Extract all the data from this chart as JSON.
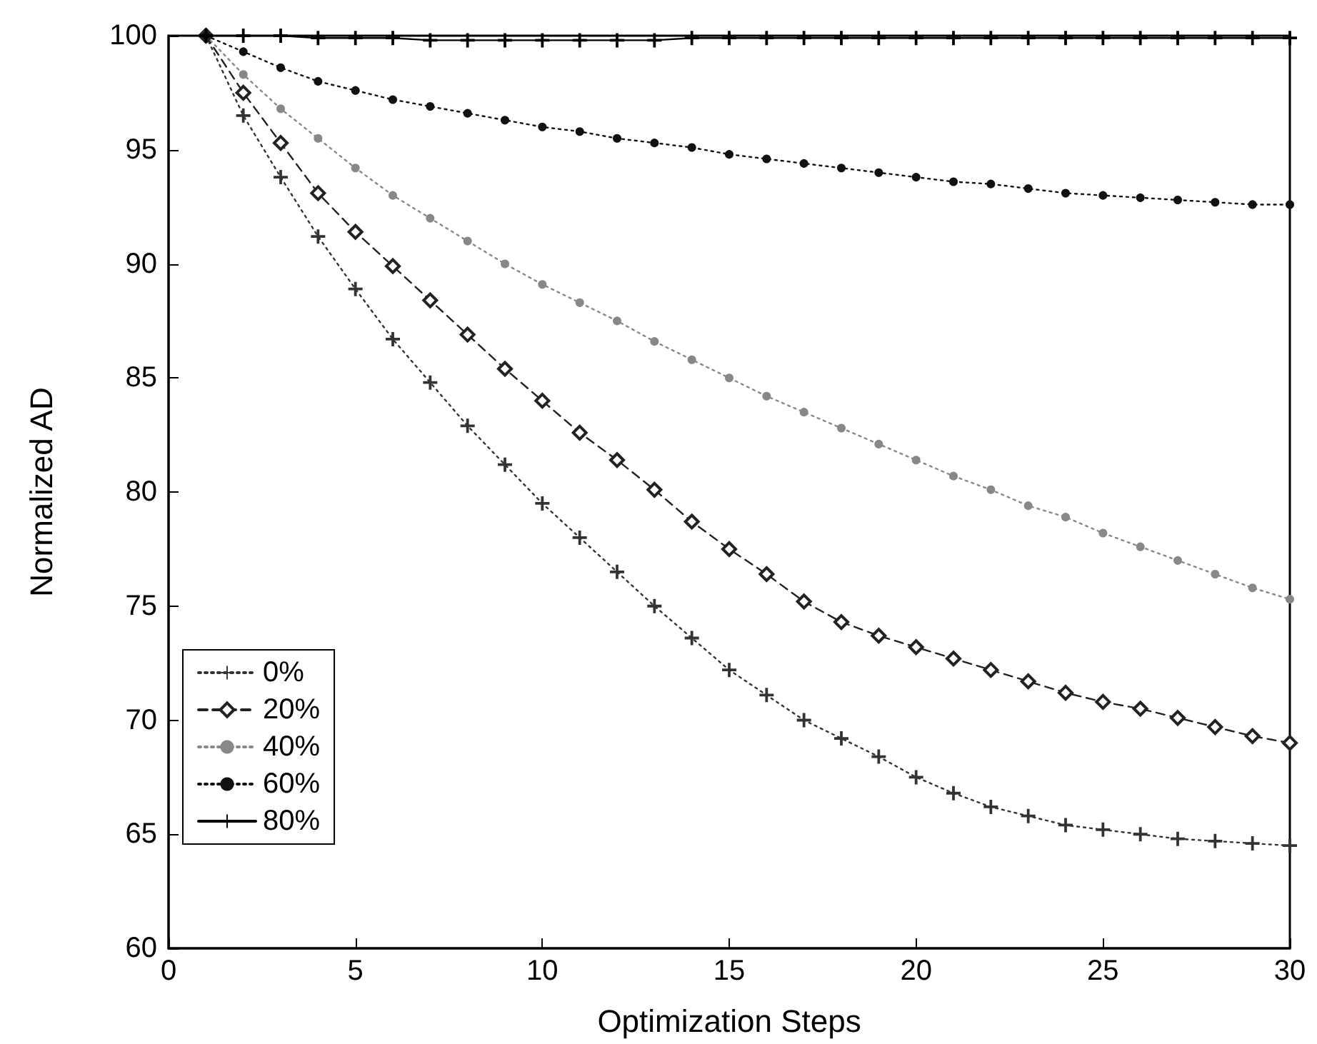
{
  "chart_data": {
    "type": "line",
    "xlabel": "Optimization Steps",
    "ylabel": "Normalized AD",
    "x": [
      1,
      2,
      3,
      4,
      5,
      6,
      7,
      8,
      9,
      10,
      11,
      12,
      13,
      14,
      15,
      16,
      17,
      18,
      19,
      20,
      21,
      22,
      23,
      24,
      25,
      26,
      27,
      28,
      29,
      30
    ],
    "xlim": [
      0,
      30
    ],
    "xticks": [
      0,
      5,
      10,
      15,
      20,
      25,
      30
    ],
    "ylim": [
      60,
      100
    ],
    "yticks": [
      60,
      65,
      70,
      75,
      80,
      85,
      90,
      95,
      100
    ],
    "grid": false,
    "legend": "bottom left",
    "series": [
      {
        "name": "0%",
        "color": "#333333",
        "marker": "cross",
        "line_style": "dotted",
        "values": [
          100,
          96.5,
          93.8,
          91.2,
          88.9,
          86.7,
          84.8,
          82.9,
          81.2,
          79.5,
          78,
          76.5,
          75,
          73.6,
          72.2,
          71.1,
          70,
          69.2,
          68.4,
          67.5,
          66.8,
          66.2,
          65.8,
          65.4,
          65.2,
          65,
          64.8,
          64.7,
          64.6,
          64.5
        ]
      },
      {
        "name": "20%",
        "color": "#222222",
        "marker": "diamond",
        "line_style": "dashed",
        "values": [
          100,
          97.5,
          95.3,
          93.1,
          91.4,
          89.9,
          88.4,
          86.9,
          85.4,
          84,
          82.6,
          81.4,
          80.1,
          78.7,
          77.5,
          76.4,
          75.2,
          74.3,
          73.7,
          73.2,
          72.7,
          72.2,
          71.7,
          71.2,
          70.8,
          70.5,
          70.1,
          69.7,
          69.3,
          69
        ]
      },
      {
        "name": "40%",
        "color": "#888888",
        "marker": "circle",
        "line_style": "dotted",
        "values": [
          100,
          98.3,
          96.8,
          95.5,
          94.2,
          93,
          92,
          91,
          90,
          89.1,
          88.3,
          87.5,
          86.6,
          85.8,
          85,
          84.2,
          83.5,
          82.8,
          82.1,
          81.4,
          80.7,
          80.1,
          79.4,
          78.9,
          78.2,
          77.6,
          77,
          76.4,
          75.8,
          75.3
        ]
      },
      {
        "name": "60%",
        "color": "#111111",
        "marker": "circle",
        "line_style": "dotted",
        "values": [
          100,
          99.3,
          98.6,
          98,
          97.6,
          97.2,
          96.9,
          96.6,
          96.3,
          96,
          95.8,
          95.5,
          95.3,
          95.1,
          94.8,
          94.6,
          94.4,
          94.2,
          94,
          93.8,
          93.6,
          93.5,
          93.3,
          93.1,
          93,
          92.9,
          92.8,
          92.7,
          92.6,
          92.6
        ]
      },
      {
        "name": "80%",
        "color": "#000000",
        "marker": "cross",
        "line_style": "solid",
        "values": [
          100,
          100,
          100,
          99.9,
          99.9,
          99.9,
          99.8,
          99.8,
          99.8,
          99.8,
          99.8,
          99.8,
          99.8,
          99.9,
          99.9,
          99.9,
          99.9,
          99.9,
          99.9,
          99.9,
          99.9,
          99.9,
          99.9,
          99.9,
          99.9,
          99.9,
          99.9,
          99.9,
          99.9,
          99.9
        ]
      }
    ]
  }
}
